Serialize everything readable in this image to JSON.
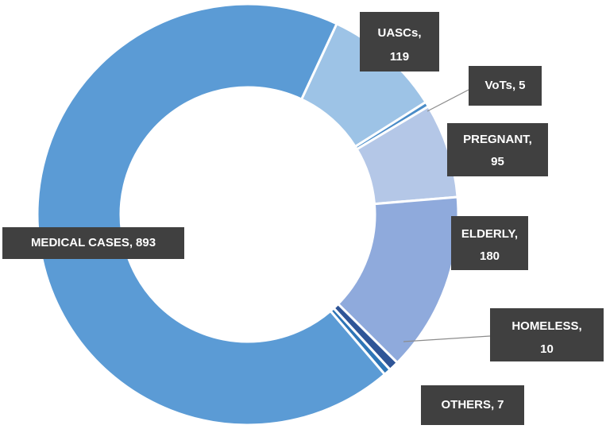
{
  "chart_data": {
    "type": "donut",
    "categories": [
      "UASCs",
      "VoTs",
      "PREGNANT",
      "ELDERLY",
      "HOMELESS",
      "OTHERS",
      "MEDICAL CASES"
    ],
    "values": [
      119,
      5,
      95,
      180,
      10,
      7,
      893
    ],
    "colors": [
      "#9dc3e6",
      "#4a8cc8",
      "#b4c7e7",
      "#8faadc",
      "#2f5597",
      "#2e75b6",
      "#5b9bd5"
    ],
    "label_separator": ","
  }
}
